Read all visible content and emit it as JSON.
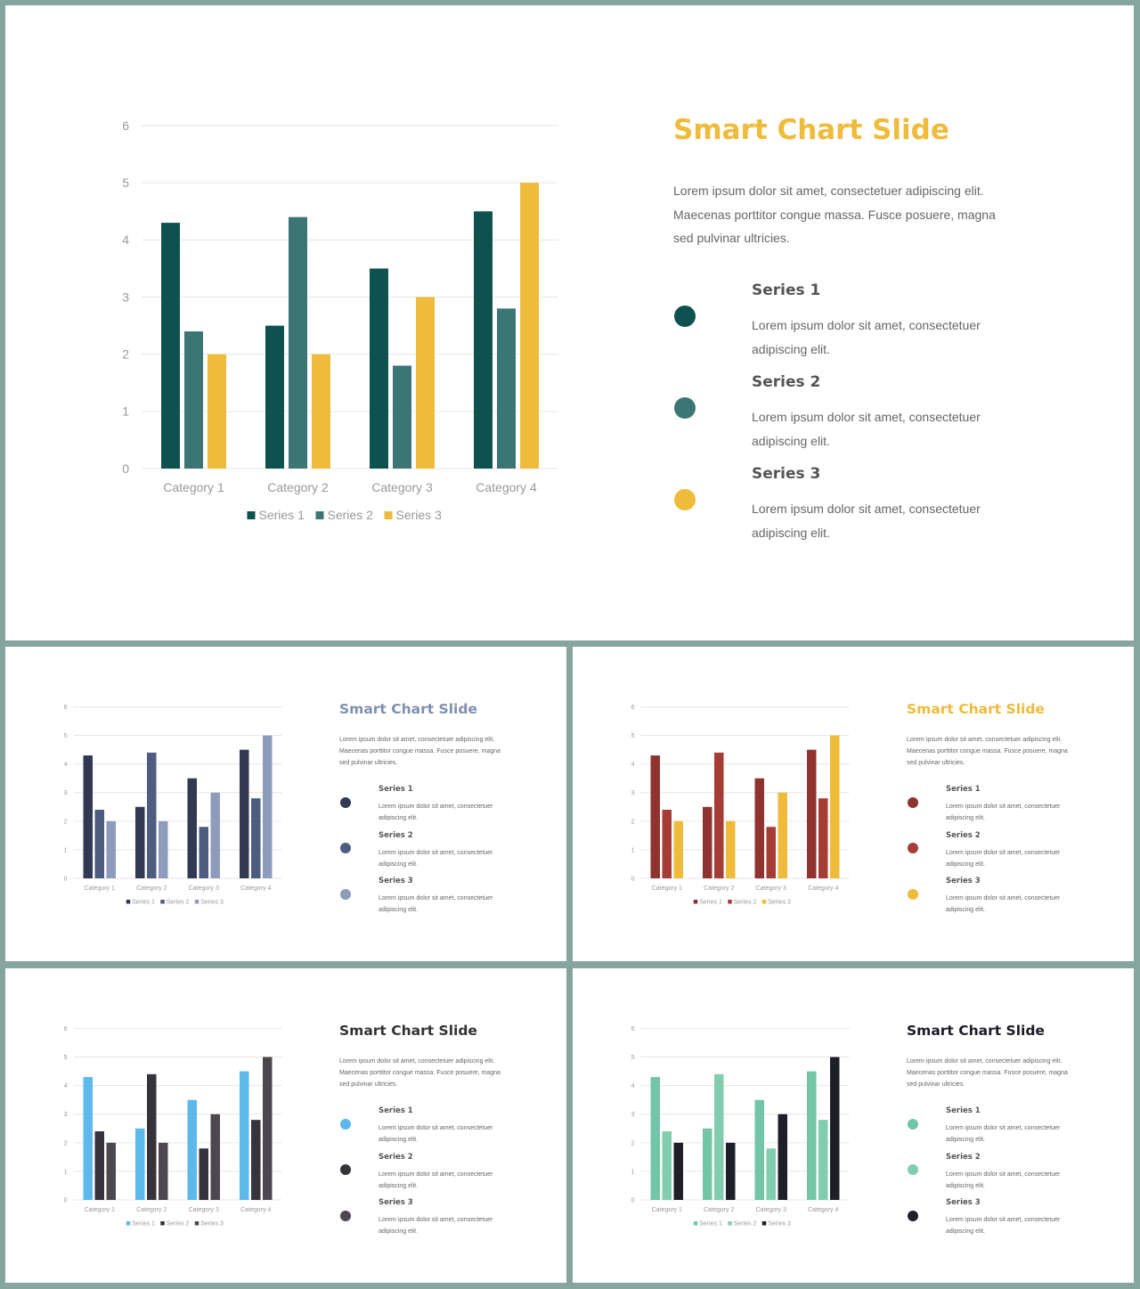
{
  "chart_data": [
    {
      "type": "bar",
      "title": "",
      "categories": [
        "Category 1",
        "Category 2",
        "Category 3",
        "Category 4"
      ],
      "series": [
        {
          "name": "Series 1",
          "values": [
            4.3,
            2.5,
            3.5,
            4.5
          ],
          "color": "#0e524f"
        },
        {
          "name": "Series 2",
          "values": [
            2.4,
            4.4,
            1.8,
            2.8
          ],
          "color": "#3b7675"
        },
        {
          "name": "Series 3",
          "values": [
            2,
            2,
            3,
            5
          ],
          "color": "#efbb3b"
        }
      ],
      "ylim": [
        0,
        6
      ],
      "yticks": [
        0,
        1,
        2,
        3,
        4,
        5,
        6
      ],
      "grid": true,
      "legend": "bottom"
    },
    {
      "type": "bar",
      "title": "",
      "categories": [
        "Category 1",
        "Category 2",
        "Category 3",
        "Category 4"
      ],
      "series": [
        {
          "name": "Series 1",
          "values": [
            4.3,
            2.5,
            3.5,
            4.5
          ],
          "color": "#313a52"
        },
        {
          "name": "Series 2",
          "values": [
            2.4,
            4.4,
            1.8,
            2.8
          ],
          "color": "#4e5c7f"
        },
        {
          "name": "Series 3",
          "values": [
            2,
            2,
            3,
            5
          ],
          "color": "#8e9cbc"
        }
      ],
      "ylim": [
        0,
        6
      ],
      "yticks": [
        0,
        1,
        2,
        3,
        4,
        5,
        6
      ],
      "grid": true,
      "legend": "bottom"
    },
    {
      "type": "bar",
      "title": "",
      "categories": [
        "Category 1",
        "Category 2",
        "Category 3",
        "Category 4"
      ],
      "series": [
        {
          "name": "Series 1",
          "values": [
            4.3,
            2.5,
            3.5,
            4.5
          ],
          "color": "#8f3330"
        },
        {
          "name": "Series 2",
          "values": [
            2.4,
            4.4,
            1.8,
            2.8
          ],
          "color": "#a63c36"
        },
        {
          "name": "Series 3",
          "values": [
            2,
            2,
            3,
            5
          ],
          "color": "#efbb3b"
        }
      ],
      "ylim": [
        0,
        6
      ],
      "yticks": [
        0,
        1,
        2,
        3,
        4,
        5,
        6
      ],
      "grid": true,
      "legend": "bottom"
    },
    {
      "type": "bar",
      "title": "",
      "categories": [
        "Category 1",
        "Category 2",
        "Category 3",
        "Category 4"
      ],
      "series": [
        {
          "name": "Series 1",
          "values": [
            4.3,
            2.5,
            3.5,
            4.5
          ],
          "color": "#5db8ec"
        },
        {
          "name": "Series 2",
          "values": [
            2.4,
            4.4,
            1.8,
            2.8
          ],
          "color": "#36333a"
        },
        {
          "name": "Series 3",
          "values": [
            2,
            2,
            3,
            5
          ],
          "color": "#4d484f"
        }
      ],
      "ylim": [
        0,
        6
      ],
      "yticks": [
        0,
        1,
        2,
        3,
        4,
        5,
        6
      ],
      "grid": true,
      "legend": "bottom"
    },
    {
      "type": "bar",
      "title": "",
      "categories": [
        "Category 1",
        "Category 2",
        "Category 3",
        "Category 4"
      ],
      "series": [
        {
          "name": "Series 1",
          "values": [
            4.3,
            2.5,
            3.5,
            4.5
          ],
          "color": "#72c5a6"
        },
        {
          "name": "Series 2",
          "values": [
            2.4,
            4.4,
            1.8,
            2.8
          ],
          "color": "#82cdb0"
        },
        {
          "name": "Series 3",
          "values": [
            2,
            2,
            3,
            5
          ],
          "color": "#1f1f2a"
        }
      ],
      "ylim": [
        0,
        6
      ],
      "yticks": [
        0,
        1,
        2,
        3,
        4,
        5,
        6
      ],
      "grid": true,
      "legend": "bottom"
    }
  ],
  "slides": [
    {
      "title": "Smart Chart Slide",
      "title_color": "#efbb3b",
      "description": "Lorem ipsum dolor sit amet, consectetuer adipiscing elit. Maecenas porttitor congue massa. Fusce posuere, magna sed pulvinar ultricies.",
      "items": [
        {
          "name": "Series 1",
          "text": "Lorem ipsum dolor sit amet, consectetuer adipiscing elit.",
          "color": "#0e524f"
        },
        {
          "name": "Series 2",
          "text": "Lorem ipsum dolor sit amet, consectetuer adipiscing elit.",
          "color": "#3b7675"
        },
        {
          "name": "Series 3",
          "text": "Lorem ipsum dolor sit amet, consectetuer adipiscing elit.",
          "color": "#efbb3b"
        }
      ]
    },
    {
      "title": "Smart Chart Slide",
      "title_color": "#8090ad",
      "description": "Lorem ipsum dolor sit amet, consectetuer adipiscing elit. Maecenas porttitor congue massa. Fusce posuere, magna sed pulvinar ultricies.",
      "items": [
        {
          "name": "Series 1",
          "text": "Lorem ipsum dolor sit amet, consectetuer adipiscing elit.",
          "color": "#313a52"
        },
        {
          "name": "Series 2",
          "text": "Lorem ipsum dolor sit amet, consectetuer adipiscing elit.",
          "color": "#4e5c7f"
        },
        {
          "name": "Series 3",
          "text": "Lorem ipsum dolor sit amet, consectetuer adipiscing elit.",
          "color": "#8e9cbc"
        }
      ]
    },
    {
      "title": "Smart Chart Slide",
      "title_color": "#efbb3b",
      "description": "Lorem ipsum dolor sit amet, consectetuer adipiscing elit. Maecenas porttitor congue massa. Fusce posuere, magna sed pulvinar ultricies.",
      "items": [
        {
          "name": "Series 1",
          "text": "Lorem ipsum dolor sit amet, consectetuer adipiscing elit.",
          "color": "#8f3330"
        },
        {
          "name": "Series 2",
          "text": "Lorem ipsum dolor sit amet, consectetuer adipiscing elit.",
          "color": "#a63c36"
        },
        {
          "name": "Series 3",
          "text": "Lorem ipsum dolor sit amet, consectetuer adipiscing elit.",
          "color": "#efbb3b"
        }
      ]
    },
    {
      "title": "Smart Chart Slide",
      "title_color": "#333333",
      "description": "Lorem ipsum dolor sit amet, consectetuer adipiscing elit. Maecenas porttitor congue massa. Fusce posuere, magna sed pulvinar ultricies.",
      "items": [
        {
          "name": "Series 1",
          "text": "Lorem ipsum dolor sit amet, consectetuer adipiscing elit.",
          "color": "#5db8ec"
        },
        {
          "name": "Series 2",
          "text": "Lorem ipsum dolor sit amet, consectetuer adipiscing elit.",
          "color": "#36333a"
        },
        {
          "name": "Series 3",
          "text": "Lorem ipsum dolor sit amet, consectetuer adipiscing elit.",
          "color": "#4d484f"
        }
      ]
    },
    {
      "title": "Smart Chart Slide",
      "title_color": "#1b1b24",
      "description": "Lorem ipsum dolor sit amet, consectetuer adipiscing elit. Maecenas porttitor congue massa. Fusce posuere, magna sed pulvinar ultricies.",
      "items": [
        {
          "name": "Series 1",
          "text": "Lorem ipsum dolor sit amet, consectetuer adipiscing elit.",
          "color": "#72c5a6"
        },
        {
          "name": "Series 2",
          "text": "Lorem ipsum dolor sit amet, consectetuer adipiscing elit.",
          "color": "#82cdb0"
        },
        {
          "name": "Series 3",
          "text": "Lorem ipsum dolor sit amet, consectetuer adipiscing elit.",
          "color": "#1f1f2a"
        }
      ]
    }
  ]
}
